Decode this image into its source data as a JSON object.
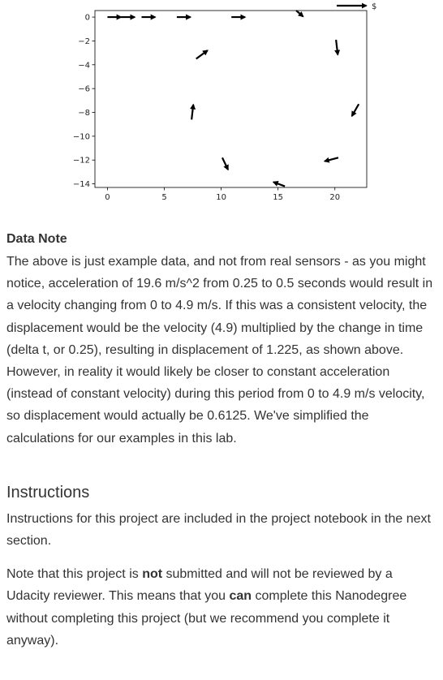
{
  "chart_data": {
    "type": "quiver",
    "title": "",
    "xlabel": "",
    "ylabel": "",
    "xlim": [
      -1.1,
      22.8
    ],
    "ylim": [
      -14.3,
      0.55
    ],
    "xticks": [
      0,
      5,
      10,
      15,
      20
    ],
    "yticks": [
      0,
      -2,
      -4,
      -6,
      -8,
      -10,
      -12,
      -14
    ],
    "ytick_labels": [
      "0",
      "−2",
      "−4",
      "−6",
      "−8",
      "−10",
      "−12",
      "−14"
    ],
    "grid": false,
    "arrows": [
      {
        "x": 0.0,
        "y": 0.0,
        "dx": 1.2,
        "dy": 0.0
      },
      {
        "x": 1.2,
        "y": 0.0,
        "dx": 1.2,
        "dy": 0.0
      },
      {
        "x": 3.0,
        "y": 0.0,
        "dx": 1.2,
        "dy": 0.0
      },
      {
        "x": 6.1,
        "y": 0.0,
        "dx": 1.2,
        "dy": 0.0
      },
      {
        "x": 10.9,
        "y": 0.0,
        "dx": 1.2,
        "dy": 0.0
      },
      {
        "x": 16.6,
        "y": 0.55,
        "dx": 0.6,
        "dy": -0.5
      },
      {
        "x": 20.1,
        "y": -1.9,
        "dx": 0.15,
        "dy": -1.25
      },
      {
        "x": 7.8,
        "y": -3.5,
        "dx": 1.0,
        "dy": 0.7
      },
      {
        "x": 22.1,
        "y": -7.3,
        "dx": -0.6,
        "dy": -1.0
      },
      {
        "x": 7.4,
        "y": -8.6,
        "dx": 0.15,
        "dy": 1.25
      },
      {
        "x": 20.3,
        "y": -11.8,
        "dx": -1.2,
        "dy": -0.3
      },
      {
        "x": 10.1,
        "y": -11.8,
        "dx": 0.5,
        "dy": -1.0
      },
      {
        "x": 15.6,
        "y": -14.2,
        "dx": -1.0,
        "dy": 0.35
      }
    ],
    "key_arrow": {
      "dx": 2.6,
      "dy": 0.0,
      "label": "$"
    }
  },
  "note": {
    "title": "Data Note",
    "text": "The above is just example data, and not from real sensors - as you might notice, acceleration of 19.6 m/s^2 from 0.25 to 0.5 seconds would result in a velocity changing from 0 to 4.9 m/s. If this was a consistent velocity, the displacement would be the velocity (4.9) multiplied by the change in time (delta t, or 0.25), resulting in displacement of 1.225, as shown above. However, in reality it would likely be closer to constant acceleration (instead of constant velocity) during this period from 0 to 4.9 m/s velocity, so displacement would actually be 0.6125. We've simplified the calculations for our examples in this lab."
  },
  "instructions": {
    "heading": "Instructions",
    "para1": "Instructions for this project are included in the project notebook in the next section.",
    "para2": {
      "part1": "Note that this project is ",
      "bold1": "not",
      "part2": " submitted and will not be reviewed by a Udacity reviewer. This means that you ",
      "bold2": "can",
      "part3": " complete this Nanodegree without completing this project (but we recommend you complete it anyway)."
    }
  }
}
